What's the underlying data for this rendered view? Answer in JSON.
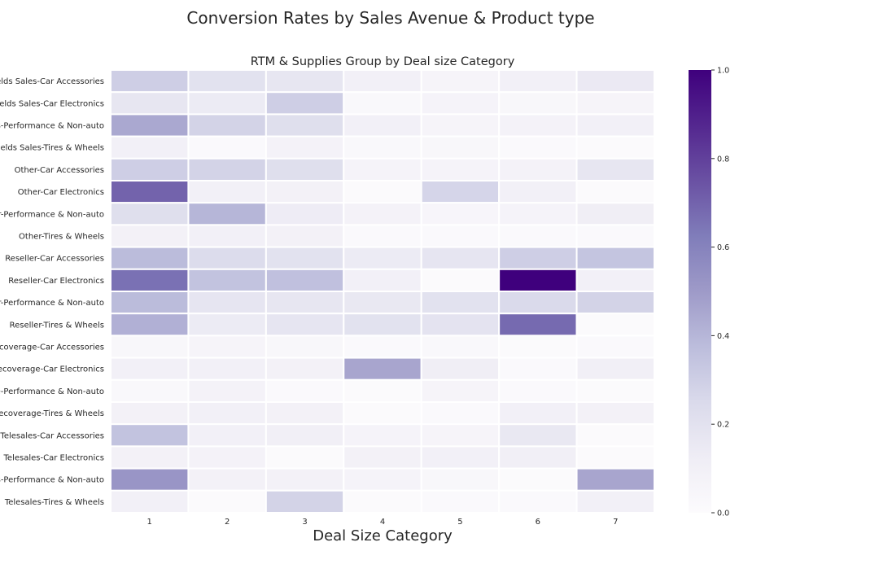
{
  "chart_data": {
    "type": "heatmap",
    "title": "Conversion Rates by Sales Avenue & Product type",
    "subtitle": "RTM & Supplies Group by Deal size Category",
    "xlabel": "Deal Size Category",
    "ylabel": "",
    "x_categories": [
      "1",
      "2",
      "3",
      "4",
      "5",
      "6",
      "7"
    ],
    "y_categories": [
      "Fields Sales-Car Accessories",
      "Fields Sales-Car Electronics",
      "Fields Sales-Performance & Non-auto",
      "Fields Sales-Tires & Wheels",
      "Other-Car Accessories",
      "Other-Car Electronics",
      "Other-Performance & Non-auto",
      "Other-Tires & Wheels",
      "Reseller-Car Accessories",
      "Reseller-Car Electronics",
      "Reseller-Performance & Non-auto",
      "Reseller-Tires & Wheels",
      "Telecoverage-Car Accessories",
      "Telecoverage-Car Electronics",
      "Telecoverage-Performance & Non-auto",
      "Telecoverage-Tires & Wheels",
      "Telesales-Car Accessories",
      "Telesales-Car Electronics",
      "Telesales-Performance & Non-auto",
      "Telesales-Tires & Wheels"
    ],
    "values": [
      [
        0.3,
        0.2,
        0.17,
        0.1,
        0.06,
        0.1,
        0.15
      ],
      [
        0.17,
        0.14,
        0.3,
        0.03,
        0.07,
        0.04,
        0.06
      ],
      [
        0.45,
        0.28,
        0.22,
        0.1,
        0.06,
        0.08,
        0.1
      ],
      [
        0.1,
        0.02,
        0.08,
        0.03,
        0.04,
        0.02,
        0.01
      ],
      [
        0.3,
        0.28,
        0.22,
        0.07,
        0.07,
        0.08,
        0.17
      ],
      [
        0.7,
        0.1,
        0.09,
        0.01,
        0.27,
        0.1,
        0.01
      ],
      [
        0.22,
        0.4,
        0.13,
        0.08,
        0.05,
        0.07,
        0.12
      ],
      [
        0.09,
        0.1,
        0.09,
        0.02,
        0.02,
        0.02,
        0.02
      ],
      [
        0.38,
        0.24,
        0.2,
        0.14,
        0.18,
        0.3,
        0.34
      ],
      [
        0.66,
        0.35,
        0.36,
        0.1,
        0.01,
        1.0,
        0.1
      ],
      [
        0.38,
        0.18,
        0.17,
        0.16,
        0.2,
        0.25,
        0.28
      ],
      [
        0.42,
        0.14,
        0.18,
        0.2,
        0.19,
        0.68,
        0.01
      ],
      [
        0.04,
        0.06,
        0.04,
        0.02,
        0.03,
        0.01,
        0.02
      ],
      [
        0.1,
        0.1,
        0.09,
        0.46,
        0.12,
        0.02,
        0.11
      ],
      [
        0.03,
        0.08,
        0.02,
        0.01,
        0.06,
        0.02,
        0.01
      ],
      [
        0.09,
        0.1,
        0.09,
        0.01,
        0.02,
        0.1,
        0.09
      ],
      [
        0.35,
        0.1,
        0.11,
        0.07,
        0.06,
        0.16,
        0.01
      ],
      [
        0.09,
        0.08,
        0.01,
        0.09,
        0.1,
        0.11,
        0.01
      ],
      [
        0.52,
        0.09,
        0.09,
        0.07,
        0.04,
        0.01,
        0.46
      ],
      [
        0.1,
        0.01,
        0.28,
        0.01,
        0.02,
        0.02,
        0.1
      ]
    ],
    "zlim": [
      0,
      1
    ],
    "colormap": "Purples",
    "colorbar_ticks": [
      "0.0",
      "0.2",
      "0.4",
      "0.6",
      "0.8",
      "1.0"
    ],
    "colorbar_tick_values": [
      0,
      0.2,
      0.4,
      0.6,
      0.8,
      1.0
    ],
    "grid": false,
    "cell_separator_color": "#ffffff"
  }
}
